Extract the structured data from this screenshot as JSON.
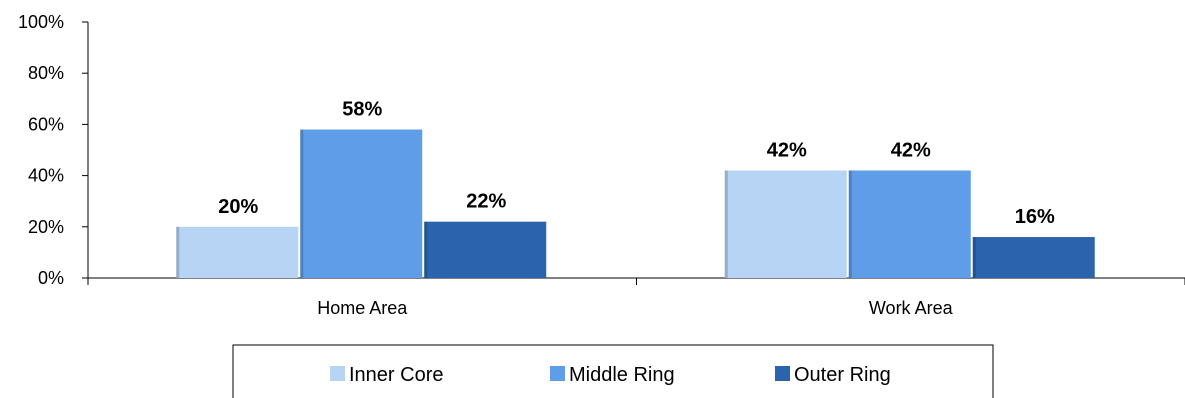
{
  "chart_data": {
    "type": "bar",
    "categories": [
      "Home Area",
      "Work Area"
    ],
    "series": [
      {
        "name": "Inner Core",
        "values": [
          20,
          42
        ],
        "color": "#b8d4f5"
      },
      {
        "name": "Middle Ring",
        "values": [
          58,
          42
        ],
        "color": "#5f9de8"
      },
      {
        "name": "Outer Ring",
        "values": [
          22,
          16
        ],
        "color": "#2b64ad"
      }
    ],
    "data_labels": [
      [
        "20%",
        "42%"
      ],
      [
        "58%",
        "42%"
      ],
      [
        "22%",
        "16%"
      ]
    ],
    "y_ticks": [
      "0%",
      "20%",
      "40%",
      "60%",
      "80%",
      "100%"
    ],
    "ylim": [
      0,
      100
    ],
    "grid": false,
    "legend_position": "bottom",
    "title": "",
    "xlabel": "",
    "ylabel": ""
  }
}
